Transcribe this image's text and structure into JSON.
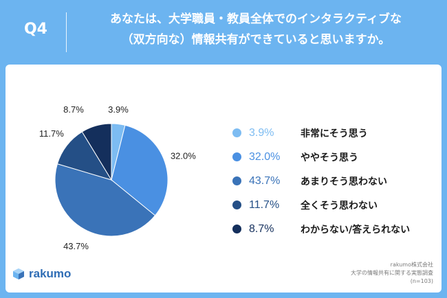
{
  "header": {
    "qnumber": "Q4",
    "question_line1": "あなたは、大学職員・教員全体でのインタラクティブな",
    "question_line2": "（双方向な）情報共有ができていると思いますか。"
  },
  "colors": {
    "background": "#6cb4f0",
    "card": "#ffffff",
    "accent": "#2f6db5"
  },
  "chart_data": {
    "type": "pie",
    "title": "",
    "slices": [
      {
        "label": "非常にそう思う",
        "value": 3.9,
        "display": "3.9%",
        "color": "#7dbcf2"
      },
      {
        "label": "ややそう思う",
        "value": 32.0,
        "display": "32.0%",
        "color": "#4a90e2"
      },
      {
        "label": "あまりそう思わない",
        "value": 43.7,
        "display": "43.7%",
        "color": "#3a73b8"
      },
      {
        "label": "全くそう思わない",
        "value": 11.7,
        "display": "11.7%",
        "color": "#244f86"
      },
      {
        "label": "わからない/答えられない",
        "value": 8.7,
        "display": "8.7%",
        "color": "#142f5c"
      }
    ],
    "legend_position": "right"
  },
  "footer": {
    "logo_text": "rakumo",
    "source_line1": "rakumo株式会社",
    "source_line2": "大学の情報共有に関する実態調査",
    "source_line3": "(n=103)"
  }
}
